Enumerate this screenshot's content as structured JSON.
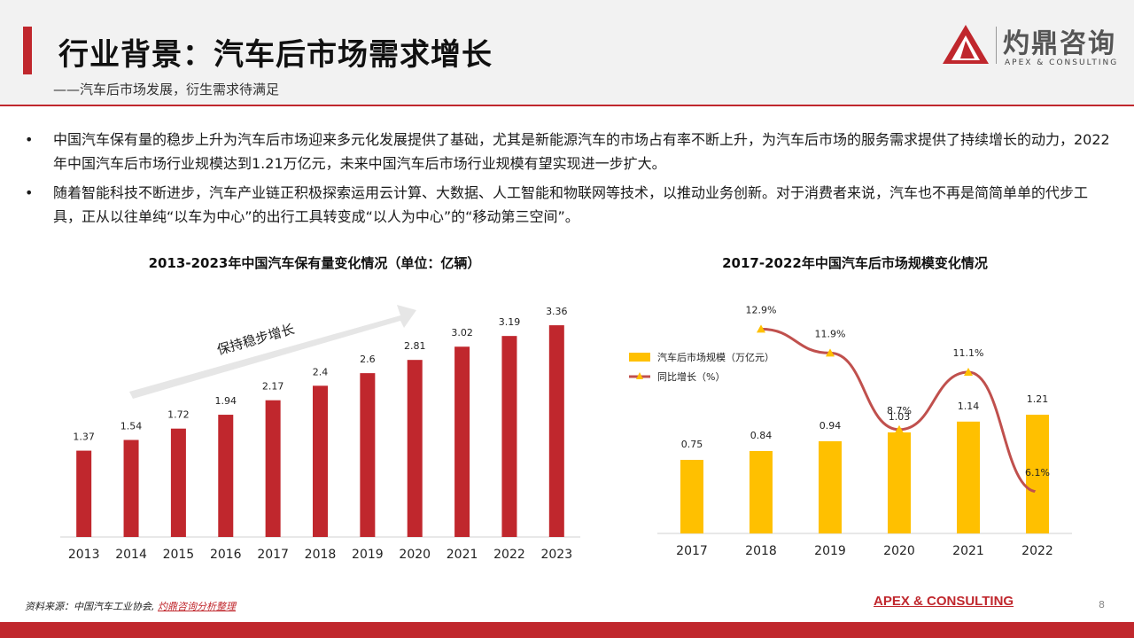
{
  "header": {
    "title": "行业背景：汽车后市场需求增长",
    "subtitle": "——汽车后市场发展，衍生需求待满足"
  },
  "logo": {
    "name": "灼鼎咨询",
    "en": "APEX & CONSULTING"
  },
  "bullets": [
    "中国汽车保有量的稳步上升为汽车后市场迎来多元化发展提供了基础，尤其是新能源汽车的市场占有率不断上升，为汽车后市场的服务需求提供了持续增长的动力，2022年中国汽车后市场行业规模达到1.21万亿元，未来中国汽车后市场行业规模有望实现进一步扩大。",
    "随着智能科技不断进步，汽车产业链正积极探索运用云计算、大数据、人工智能和物联网等技术，以推动业务创新。对于消费者来说，汽车也不再是简简单单的代步工具，正从以往单纯“以车为中心”的出行工具转变成“以人为中心”的“移动第三空间”。"
  ],
  "bullet_symbol": "•",
  "footer": {
    "source_prefix": "资料来源：中国汽车工业协会,",
    "source_highlight": "灼鼎咨询分析整理",
    "brand": "APEX & CONSULTING",
    "page": "8"
  },
  "colors": {
    "accent": "#c0272d",
    "bar_red": "#c0272d",
    "bar_yellow": "#ffc000",
    "line_red": "#c0504d",
    "marker_yellow": "#ffc000"
  },
  "chart_data": [
    {
      "type": "bar",
      "title": "2013-2023年中国汽车保有量变化情况（单位：亿辆）",
      "categories": [
        "2013",
        "2014",
        "2015",
        "2016",
        "2017",
        "2018",
        "2019",
        "2020",
        "2021",
        "2022",
        "2023"
      ],
      "values": [
        1.37,
        1.54,
        1.72,
        1.94,
        2.17,
        2.4,
        2.6,
        2.81,
        3.02,
        3.19,
        3.36
      ],
      "value_labels": [
        "1.37",
        "1.54",
        "1.72",
        "1.94",
        "2.17",
        "2.4",
        "2.6",
        "2.81",
        "3.02",
        "3.19",
        "3.36"
      ],
      "ylim": [
        0,
        3.6
      ],
      "annotation": "保持稳步增长",
      "grid": false
    },
    {
      "type": "bar",
      "title": "2017-2022年中国汽车后市场规模变化情况",
      "categories": [
        "2017",
        "2018",
        "2019",
        "2020",
        "2021",
        "2022"
      ],
      "series": [
        {
          "name": "汽车后市场规模（万亿元）",
          "type": "bar",
          "values": [
            0.75,
            0.84,
            0.94,
            1.03,
            1.14,
            1.21
          ],
          "value_labels": [
            "0.75",
            "0.84",
            "0.94",
            "1.03",
            "1.14",
            "1.21"
          ]
        },
        {
          "name": "同比增长（%）",
          "type": "line",
          "values": [
            null,
            12.9,
            11.9,
            8.7,
            11.1,
            6.1
          ],
          "value_labels": [
            "",
            "12.9%",
            "11.9%",
            "8.7%",
            "11.1%",
            "6.1%"
          ]
        }
      ],
      "legend_position": "left",
      "grid": false
    }
  ]
}
